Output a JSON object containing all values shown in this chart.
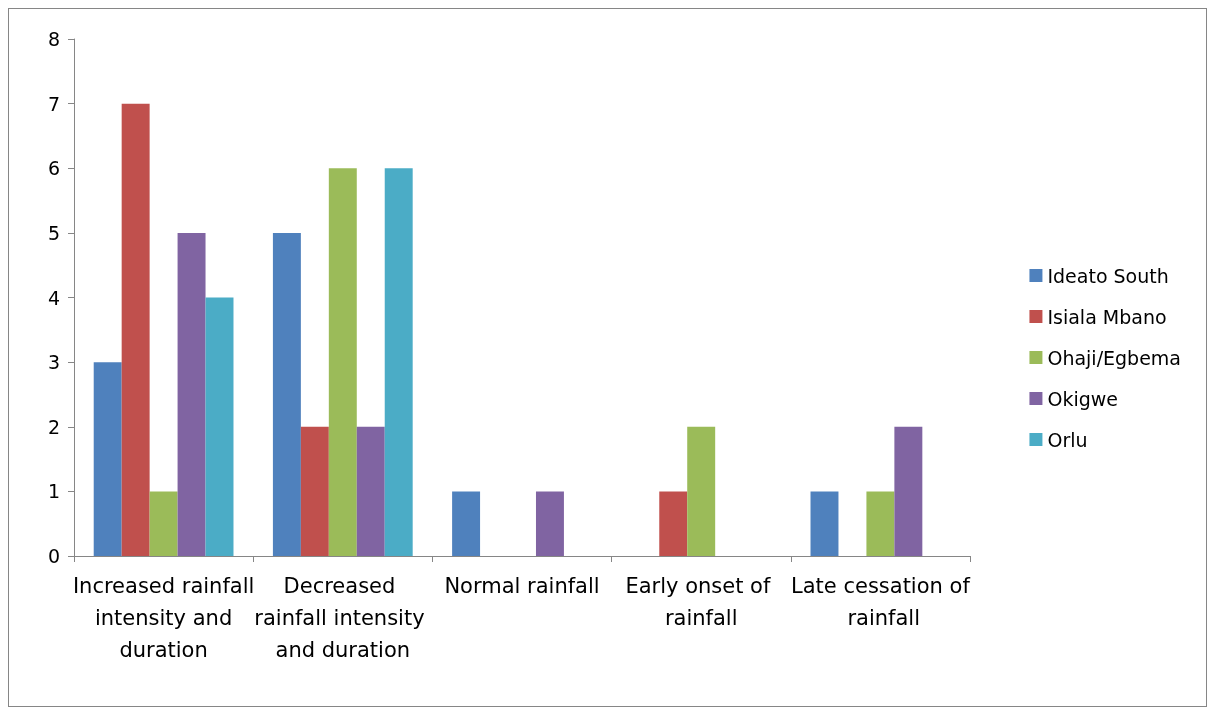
{
  "chart_data": {
    "type": "bar",
    "categories": [
      "Increased rainfall intensity and duration",
      "Decreased rainfall intensity and duration",
      "Normal rainfall",
      "Early onset of rainfall",
      "Late cessation of rainfall"
    ],
    "series": [
      {
        "name": "Ideato South",
        "color": "#4f81bd",
        "values": [
          3,
          5,
          1,
          0,
          1
        ]
      },
      {
        "name": "Isiala Mbano",
        "color": "#c0504d",
        "values": [
          7,
          2,
          0,
          1,
          0
        ]
      },
      {
        "name": "Ohaji/Egbema",
        "color": "#9bbb59",
        "values": [
          1,
          6,
          0,
          2,
          1
        ]
      },
      {
        "name": "Okigwe",
        "color": "#8064a2",
        "values": [
          5,
          2,
          1,
          0,
          2
        ]
      },
      {
        "name": "Orlu",
        "color": "#4bacc6",
        "values": [
          4,
          6,
          0,
          0,
          0
        ]
      }
    ],
    "ylim": [
      0,
      8
    ],
    "yticks": [
      0,
      1,
      2,
      3,
      4,
      5,
      6,
      7,
      8
    ],
    "grid": false,
    "legend": "right"
  }
}
